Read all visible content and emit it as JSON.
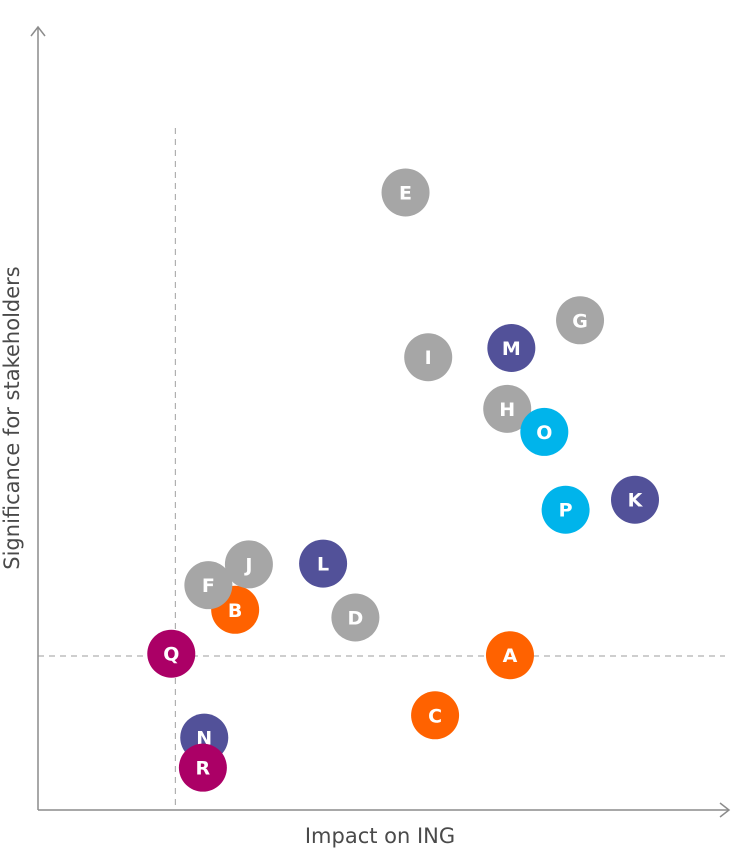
{
  "chart_data": {
    "type": "scatter",
    "xlabel": "Impact on ING",
    "ylabel": "Significance for stakeholders",
    "xlim": [
      0,
      100
    ],
    "ylim": [
      0,
      100
    ],
    "grid": false,
    "reference_lines": {
      "x": 20,
      "y": 20
    },
    "colors": {
      "gray": "#a6a6a6",
      "orange": "#ff6200",
      "purple": "#525199",
      "cyan": "#00b4eb",
      "magenta": "#ab0066"
    },
    "points": [
      {
        "label": "A",
        "x": 68.7,
        "y": 20.1,
        "color": "orange"
      },
      {
        "label": "B",
        "x": 28.7,
        "y": 26.0,
        "color": "orange"
      },
      {
        "label": "C",
        "x": 57.8,
        "y": 12.3,
        "color": "orange"
      },
      {
        "label": "D",
        "x": 46.2,
        "y": 25.0,
        "color": "gray"
      },
      {
        "label": "E",
        "x": 53.5,
        "y": 80.2,
        "color": "gray"
      },
      {
        "label": "F",
        "x": 24.8,
        "y": 29.2,
        "color": "gray"
      },
      {
        "label": "G",
        "x": 78.9,
        "y": 63.6,
        "color": "gray"
      },
      {
        "label": "H",
        "x": 68.3,
        "y": 52.1,
        "color": "gray"
      },
      {
        "label": "I",
        "x": 56.8,
        "y": 58.8,
        "color": "gray"
      },
      {
        "label": "J",
        "x": 30.7,
        "y": 31.9,
        "color": "gray"
      },
      {
        "label": "K",
        "x": 86.9,
        "y": 40.3,
        "color": "purple"
      },
      {
        "label": "L",
        "x": 41.5,
        "y": 32.0,
        "color": "purple"
      },
      {
        "label": "M",
        "x": 68.9,
        "y": 60.0,
        "color": "purple"
      },
      {
        "label": "N",
        "x": 24.2,
        "y": 9.4,
        "color": "purple"
      },
      {
        "label": "O",
        "x": 73.7,
        "y": 49.1,
        "color": "cyan"
      },
      {
        "label": "P",
        "x": 76.8,
        "y": 39.0,
        "color": "cyan"
      },
      {
        "label": "Q",
        "x": 19.4,
        "y": 20.3,
        "color": "magenta"
      },
      {
        "label": "R",
        "x": 24.0,
        "y": 5.5,
        "color": "magenta"
      }
    ]
  }
}
